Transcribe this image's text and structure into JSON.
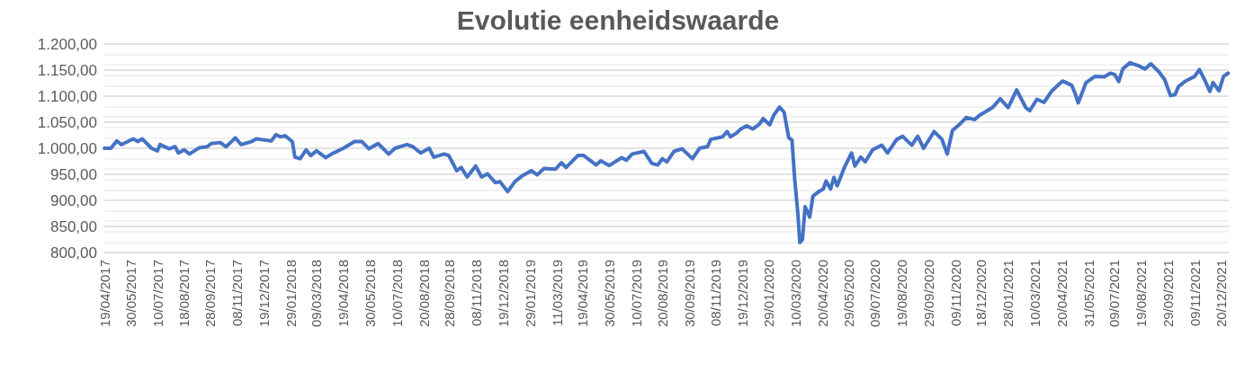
{
  "chart_data": {
    "type": "line",
    "title": "Evolutie eenheidswaarde",
    "marker": "none",
    "grid": "y",
    "xlim": [
      "2017-04-19",
      "2021-12-31"
    ],
    "ylim": [
      800,
      1200
    ],
    "yticks": [
      {
        "value": 800,
        "label": "800,00"
      },
      {
        "value": 850,
        "label": "850,00"
      },
      {
        "value": 900,
        "label": "900,00"
      },
      {
        "value": 950,
        "label": "950,00"
      },
      {
        "value": 1000,
        "label": "1.000,00"
      },
      {
        "value": 1050,
        "label": "1.050,00"
      },
      {
        "value": 1100,
        "label": "1.100,00"
      },
      {
        "value": 1150,
        "label": "1.150,00"
      },
      {
        "value": 1200,
        "label": "1.200,00"
      }
    ],
    "xticks": [
      {
        "value": "2017-04-19",
        "label": "19/04/2017"
      },
      {
        "value": "2017-05-30",
        "label": "30/05/2017"
      },
      {
        "value": "2017-07-10",
        "label": "10/07/2017"
      },
      {
        "value": "2017-08-18",
        "label": "18/08/2017"
      },
      {
        "value": "2017-09-28",
        "label": "28/09/2017"
      },
      {
        "value": "2017-11-08",
        "label": "08/11/2017"
      },
      {
        "value": "2017-12-19",
        "label": "19/12/2017"
      },
      {
        "value": "2018-01-29",
        "label": "29/01/2018"
      },
      {
        "value": "2018-03-09",
        "label": "09/03/2018"
      },
      {
        "value": "2018-04-19",
        "label": "19/04/2018"
      },
      {
        "value": "2018-05-30",
        "label": "30/05/2018"
      },
      {
        "value": "2018-07-10",
        "label": "10/07/2018"
      },
      {
        "value": "2018-08-20",
        "label": "20/08/2018"
      },
      {
        "value": "2018-09-28",
        "label": "28/09/2018"
      },
      {
        "value": "2018-11-08",
        "label": "08/11/2018"
      },
      {
        "value": "2018-12-19",
        "label": "19/12/2018"
      },
      {
        "value": "2019-01-29",
        "label": "29/01/2019"
      },
      {
        "value": "2019-03-11",
        "label": "11/03/2019"
      },
      {
        "value": "2019-04-19",
        "label": "19/04/2019"
      },
      {
        "value": "2019-05-30",
        "label": "30/05/2019"
      },
      {
        "value": "2019-07-10",
        "label": "10/07/2019"
      },
      {
        "value": "2019-08-20",
        "label": "20/08/2019"
      },
      {
        "value": "2019-09-30",
        "label": "30/09/2019"
      },
      {
        "value": "2019-11-08",
        "label": "08/11/2019"
      },
      {
        "value": "2019-12-19",
        "label": "19/12/2019"
      },
      {
        "value": "2020-01-29",
        "label": "29/01/2020"
      },
      {
        "value": "2020-03-10",
        "label": "10/03/2020"
      },
      {
        "value": "2020-04-20",
        "label": "20/04/2020"
      },
      {
        "value": "2020-05-29",
        "label": "29/05/2020"
      },
      {
        "value": "2020-07-09",
        "label": "09/07/2020"
      },
      {
        "value": "2020-08-19",
        "label": "19/08/2020"
      },
      {
        "value": "2020-09-29",
        "label": "29/09/2020"
      },
      {
        "value": "2020-11-09",
        "label": "09/11/2020"
      },
      {
        "value": "2020-12-18",
        "label": "18/12/2020"
      },
      {
        "value": "2021-01-28",
        "label": "28/01/2021"
      },
      {
        "value": "2021-03-10",
        "label": "10/03/2021"
      },
      {
        "value": "2021-04-20",
        "label": "20/04/2021"
      },
      {
        "value": "2021-05-31",
        "label": "31/05/2021"
      },
      {
        "value": "2021-07-09",
        "label": "09/07/2021"
      },
      {
        "value": "2021-08-19",
        "label": "19/08/2021"
      },
      {
        "value": "2021-09-29",
        "label": "29/09/2021"
      },
      {
        "value": "2021-11-09",
        "label": "09/11/2021"
      },
      {
        "value": "2021-12-20",
        "label": "20/12/2021"
      }
    ],
    "x": [
      "2017-04-19",
      "2017-04-29",
      "2017-05-08",
      "2017-05-15",
      "2017-06-02",
      "2017-06-09",
      "2017-06-16",
      "2017-06-30",
      "2017-07-09",
      "2017-07-13",
      "2017-07-27",
      "2017-08-05",
      "2017-08-10",
      "2017-08-19",
      "2017-08-27",
      "2017-09-11",
      "2017-09-23",
      "2017-09-29",
      "2017-10-13",
      "2017-10-22",
      "2017-11-05",
      "2017-11-14",
      "2017-11-30",
      "2017-12-07",
      "2017-12-30",
      "2018-01-06",
      "2018-01-13",
      "2018-01-20",
      "2018-01-31",
      "2018-02-04",
      "2018-02-12",
      "2018-02-21",
      "2018-02-28",
      "2018-03-09",
      "2018-03-23",
      "2018-04-01",
      "2018-04-19",
      "2018-05-06",
      "2018-05-17",
      "2018-05-28",
      "2018-06-11",
      "2018-06-27",
      "2018-07-07",
      "2018-07-25",
      "2018-08-03",
      "2018-08-15",
      "2018-08-28",
      "2018-09-04",
      "2018-09-20",
      "2018-09-27",
      "2018-10-09",
      "2018-10-16",
      "2018-10-25",
      "2018-11-07",
      "2018-11-16",
      "2018-11-25",
      "2018-12-07",
      "2018-12-14",
      "2018-12-26",
      "2019-01-06",
      "2019-01-18",
      "2019-01-31",
      "2019-02-09",
      "2019-02-19",
      "2019-03-09",
      "2019-03-18",
      "2019-03-25",
      "2019-04-12",
      "2019-04-21",
      "2019-05-10",
      "2019-05-17",
      "2019-05-30",
      "2019-06-18",
      "2019-06-25",
      "2019-07-04",
      "2019-07-22",
      "2019-08-03",
      "2019-08-12",
      "2019-08-19",
      "2019-08-26",
      "2019-09-06",
      "2019-09-18",
      "2019-09-29",
      "2019-10-04",
      "2019-10-15",
      "2019-10-27",
      "2019-11-01",
      "2019-11-19",
      "2019-11-26",
      "2019-12-01",
      "2019-12-10",
      "2019-12-17",
      "2019-12-26",
      "2020-01-04",
      "2020-01-14",
      "2020-01-20",
      "2020-01-30",
      "2020-02-05",
      "2020-02-14",
      "2020-02-21",
      "2020-02-28",
      "2020-03-04",
      "2020-03-08",
      "2020-03-13",
      "2020-03-16",
      "2020-03-20",
      "2020-03-24",
      "2020-03-31",
      "2020-04-05",
      "2020-04-14",
      "2020-04-21",
      "2020-04-25",
      "2020-05-02",
      "2020-05-07",
      "2020-05-12",
      "2020-05-23",
      "2020-06-03",
      "2020-06-08",
      "2020-06-17",
      "2020-06-24",
      "2020-07-05",
      "2020-07-19",
      "2020-07-28",
      "2020-08-11",
      "2020-08-20",
      "2020-08-27",
      "2020-09-03",
      "2020-09-12",
      "2020-09-21",
      "2020-10-07",
      "2020-10-19",
      "2020-10-27",
      "2020-11-04",
      "2020-11-15",
      "2020-11-25",
      "2020-12-08",
      "2020-12-15",
      "2020-12-27",
      "2021-01-05",
      "2021-01-16",
      "2021-01-28",
      "2021-02-10",
      "2021-02-24",
      "2021-03-02",
      "2021-03-13",
      "2021-03-24",
      "2021-04-04",
      "2021-04-21",
      "2021-05-05",
      "2021-05-11",
      "2021-05-15",
      "2021-05-27",
      "2021-06-10",
      "2021-06-24",
      "2021-07-03",
      "2021-07-10",
      "2021-07-16",
      "2021-07-22",
      "2021-08-02",
      "2021-08-16",
      "2021-08-25",
      "2021-09-03",
      "2021-09-15",
      "2021-09-24",
      "2021-10-03",
      "2021-10-10",
      "2021-10-15",
      "2021-10-26",
      "2021-11-09",
      "2021-11-16",
      "2021-11-25",
      "2021-12-02",
      "2021-12-07",
      "2021-12-16",
      "2021-12-23",
      "2021-12-30"
    ],
    "series": [
      {
        "color": "#4472c4",
        "values": [
          1000,
          1000,
          1014,
          1007,
          1018,
          1013,
          1018,
          1000,
          995,
          1007,
          999,
          1003,
          991,
          997,
          989,
          1001,
          1003,
          1009,
          1011,
          1003,
          1020,
          1007,
          1013,
          1018,
          1014,
          1026,
          1022,
          1024,
          1013,
          983,
          980,
          997,
          986,
          995,
          982,
          989,
          1000,
          1013,
          1013,
          999,
          1009,
          989,
          1000,
          1007,
          1003,
          991,
          1000,
          983,
          989,
          986,
          957,
          963,
          945,
          966,
          945,
          951,
          934,
          936,
          917,
          936,
          948,
          957,
          949,
          961,
          960,
          972,
          963,
          986,
          986,
          968,
          976,
          967,
          982,
          977,
          989,
          994,
          971,
          968,
          980,
          974,
          994,
          999,
          986,
          980,
          1000,
          1003,
          1017,
          1022,
          1032,
          1022,
          1029,
          1037,
          1043,
          1037,
          1046,
          1057,
          1045,
          1063,
          1079,
          1069,
          1020,
          1016,
          943,
          874,
          819,
          825,
          888,
          868,
          908,
          917,
          922,
          937,
          922,
          944,
          928,
          963,
          991,
          966,
          983,
          974,
          997,
          1006,
          991,
          1017,
          1023,
          1014,
          1006,
          1023,
          1000,
          1032,
          1017,
          989,
          1034,
          1046,
          1059,
          1055,
          1063,
          1072,
          1079,
          1095,
          1078,
          1112,
          1078,
          1072,
          1094,
          1088,
          1109,
          1129,
          1121,
          1103,
          1087,
          1126,
          1138,
          1137,
          1144,
          1141,
          1128,
          1152,
          1164,
          1158,
          1152,
          1162,
          1147,
          1132,
          1101,
          1103,
          1118,
          1129,
          1138,
          1151,
          1129,
          1109,
          1126,
          1110,
          1138,
          1144
        ]
      }
    ]
  }
}
